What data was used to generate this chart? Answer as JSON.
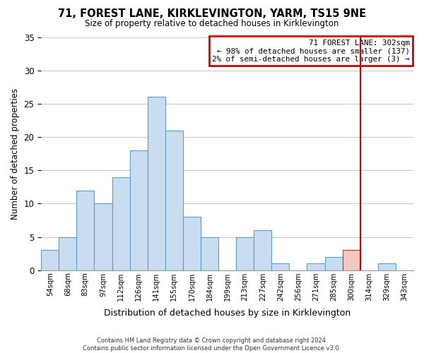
{
  "title": "71, FOREST LANE, KIRKLEVINGTON, YARM, TS15 9NE",
  "subtitle": "Size of property relative to detached houses in Kirklevington",
  "xlabel": "Distribution of detached houses by size in Kirklevington",
  "ylabel": "Number of detached properties",
  "bin_labels": [
    "54sqm",
    "68sqm",
    "83sqm",
    "97sqm",
    "112sqm",
    "126sqm",
    "141sqm",
    "155sqm",
    "170sqm",
    "184sqm",
    "199sqm",
    "213sqm",
    "227sqm",
    "242sqm",
    "256sqm",
    "271sqm",
    "285sqm",
    "300sqm",
    "314sqm",
    "329sqm",
    "343sqm"
  ],
  "bar_heights": [
    3,
    5,
    12,
    10,
    14,
    18,
    26,
    21,
    8,
    5,
    0,
    5,
    6,
    1,
    0,
    1,
    2,
    3,
    0,
    1,
    0
  ],
  "bar_color": "#c9ddf0",
  "bar_edge_color": "#5b9bd5",
  "highlight_bar_index": 17,
  "highlight_bar_color": "#f4c7c3",
  "highlight_bar_edge_color": "#c0392b",
  "vline_color": "#cc0000",
  "ylim": [
    0,
    35
  ],
  "yticks": [
    0,
    5,
    10,
    15,
    20,
    25,
    30,
    35
  ],
  "annotation_title": "71 FOREST LANE: 302sqm",
  "annotation_line1": "← 98% of detached houses are smaller (137)",
  "annotation_line2": "2% of semi-detached houses are larger (3) →",
  "annotation_box_color": "#ffffff",
  "annotation_box_edge_color": "#cc0000",
  "footer_line1": "Contains HM Land Registry data © Crown copyright and database right 2024.",
  "footer_line2": "Contains public sector information licensed under the Open Government Licence v3.0.",
  "background_color": "#ffffff",
  "grid_color": "#c8c8c8"
}
